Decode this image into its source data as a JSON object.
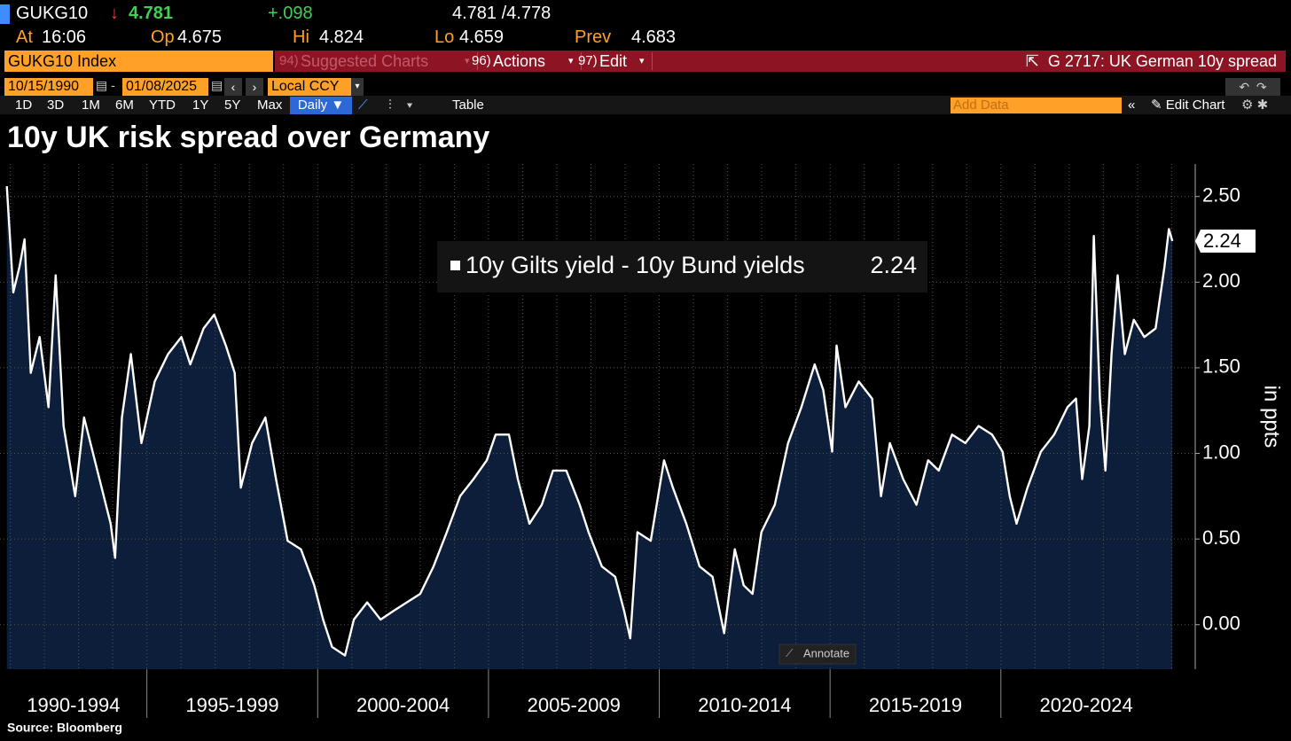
{
  "header": {
    "ticker": "GUKG10",
    "arrow": "↓",
    "last": "4.781",
    "change": "+.098",
    "bid_ask": "4.781 /4.778",
    "stats": [
      {
        "label": "At",
        "value": "16:06"
      },
      {
        "label": "Op",
        "value": "4.675"
      },
      {
        "label": "Hi",
        "value": "4.824"
      },
      {
        "label": "Lo",
        "value": "4.659"
      },
      {
        "label": "Prev",
        "value": "4.683"
      }
    ]
  },
  "toolbar": {
    "security": "GUKG10 Index",
    "menus": [
      {
        "num": "94)",
        "label": "Suggested Charts"
      },
      {
        "num": "96)",
        "label": "Actions"
      },
      {
        "num": "97)",
        "label": "Edit"
      }
    ],
    "chart_ref": "G 2717: UK German 10y spread"
  },
  "dates": {
    "start": "10/15/1990",
    "end": "01/08/2025",
    "currency": "Local CCY"
  },
  "ranges": [
    "1D",
    "3D",
    "1M",
    "6M",
    "YTD",
    "1Y",
    "5Y",
    "Max"
  ],
  "frequency": "Daily ▼",
  "table": "Table",
  "add_data": "Add Data",
  "edit_chart": "Edit Chart",
  "chart_data": {
    "type": "area",
    "title": "10y UK risk spread over Germany",
    "y_label": "in ppts",
    "annotate": "Annotate",
    "source": "Source: Bloomberg",
    "x": [
      1990.9,
      1991.09,
      1991.27,
      1991.42,
      1991.6,
      1991.86,
      1992.12,
      1992.33,
      1992.56,
      1992.9,
      1993.16,
      1993.55,
      1993.94,
      1994.07,
      1994.27,
      1994.53,
      1994.84,
      1995.23,
      1995.62,
      1996.01,
      1996.27,
      1996.66,
      1996.97,
      1997.31,
      1997.57,
      1997.75,
      1998.08,
      1998.47,
      1998.78,
      1999.12,
      1999.51,
      1999.9,
      2000.16,
      2000.42,
      2000.8,
      2001.06,
      2001.45,
      2001.84,
      2002.22,
      2002.61,
      2003.0,
      2003.39,
      2003.78,
      2004.17,
      2004.56,
      2004.95,
      2005.21,
      2005.6,
      2005.86,
      2006.2,
      2006.56,
      2006.89,
      2007.28,
      2007.67,
      2007.93,
      2008.32,
      2008.71,
      2008.97,
      2009.15,
      2009.36,
      2009.75,
      2010.14,
      2010.4,
      2010.79,
      2011.18,
      2011.56,
      2011.9,
      2012.21,
      2012.47,
      2012.73,
      2012.99,
      2013.38,
      2013.77,
      2014.16,
      2014.55,
      2014.8,
      2015.06,
      2015.19,
      2015.45,
      2015.84,
      2016.23,
      2016.49,
      2016.75,
      2017.14,
      2017.53,
      2017.87,
      2018.18,
      2018.57,
      2018.96,
      2019.35,
      2019.74,
      2020.05,
      2020.26,
      2020.46,
      2020.78,
      2021.17,
      2021.56,
      2021.95,
      2022.2,
      2022.38,
      2022.59,
      2022.72,
      2022.9,
      2023.06,
      2023.24,
      2023.42,
      2023.63,
      2023.89,
      2024.2,
      2024.53,
      2024.79,
      2024.92,
      2025.02
    ],
    "series": [
      {
        "name": "10y Gilts yield - 10y Bund yields",
        "color": "#ffffff",
        "fill": "#0c1e3a",
        "values": [
          2.56,
          1.94,
          2.09,
          2.25,
          1.47,
          1.68,
          1.27,
          2.04,
          1.16,
          0.75,
          1.21,
          0.9,
          0.59,
          0.39,
          1.21,
          1.58,
          1.06,
          1.42,
          1.58,
          1.68,
          1.52,
          1.73,
          1.81,
          1.63,
          1.47,
          0.8,
          1.06,
          1.21,
          0.85,
          0.49,
          0.44,
          0.23,
          0.03,
          -0.13,
          -0.18,
          0.03,
          0.13,
          0.03,
          0.08,
          0.13,
          0.18,
          0.34,
          0.54,
          0.75,
          0.85,
          0.96,
          1.11,
          1.11,
          0.85,
          0.59,
          0.7,
          0.9,
          0.9,
          0.7,
          0.54,
          0.34,
          0.28,
          0.08,
          -0.08,
          0.54,
          0.49,
          0.96,
          0.8,
          0.59,
          0.34,
          0.28,
          -0.05,
          0.44,
          0.23,
          0.18,
          0.54,
          0.7,
          1.06,
          1.27,
          1.52,
          1.37,
          1.01,
          1.63,
          1.27,
          1.42,
          1.32,
          0.75,
          1.06,
          0.85,
          0.7,
          0.96,
          0.9,
          1.11,
          1.06,
          1.16,
          1.11,
          1.01,
          0.75,
          0.59,
          0.8,
          1.01,
          1.11,
          1.27,
          1.32,
          0.85,
          1.16,
          2.27,
          1.32,
          0.9,
          1.58,
          2.04,
          1.58,
          1.78,
          1.68,
          1.73,
          2.09,
          2.31,
          2.24
        ]
      }
    ],
    "xlim": [
      1990.7,
      2025.69
    ],
    "xticks": [
      1995,
      2000,
      2005,
      2010,
      2015,
      2020
    ],
    "x_periods": [
      "1990-1994",
      "1995-1999",
      "2000-2004",
      "2005-2009",
      "2010-2014",
      "2015-2019",
      "2020-2024"
    ],
    "x_minor_ticks": [
      1991,
      1992,
      1993,
      1994,
      1995,
      1996,
      1997,
      1998,
      1999,
      2000,
      2001,
      2002,
      2003,
      2004,
      2005,
      2006,
      2007,
      2008,
      2009,
      2010,
      2011,
      2012,
      2013,
      2014,
      2015,
      2016,
      2017,
      2018,
      2019,
      2020,
      2021,
      2022,
      2023,
      2024,
      2025
    ],
    "ylim": [
      -0.26,
      2.69
    ],
    "yticks": [
      {
        "value": 0,
        "label": "0.00"
      },
      {
        "value": 0.5,
        "label": "0.50"
      },
      {
        "value": 1,
        "label": "1.00"
      },
      {
        "value": 1.5,
        "label": "1.50"
      },
      {
        "value": 2,
        "label": "2.00"
      },
      {
        "value": 2.5,
        "label": "2.50"
      }
    ],
    "grid": true
  }
}
